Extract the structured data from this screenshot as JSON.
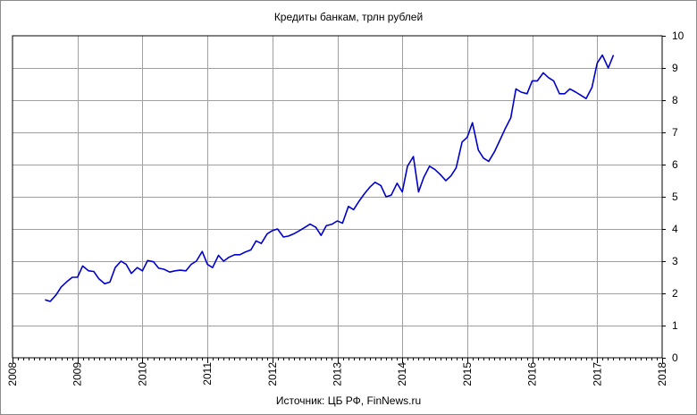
{
  "chart_data": {
    "type": "line",
    "title": "Кредиты банкам, трлн рублей",
    "source": "Источник: ЦБ РФ, FinNews.ru",
    "xlabel": "",
    "ylabel": "",
    "xlim": [
      2008,
      2018
    ],
    "ylim": [
      0,
      10
    ],
    "x_ticks": [
      "2008",
      "2009",
      "2010",
      "2011",
      "2012",
      "2013",
      "2014",
      "2015",
      "2016",
      "2017",
      "2018"
    ],
    "y_ticks": [
      "0",
      "1",
      "2",
      "3",
      "4",
      "5",
      "6",
      "7",
      "8",
      "9",
      "10"
    ],
    "y_axis_side": "right",
    "grid": true,
    "line_color": "#0000cc",
    "series": [
      {
        "x": [
          2008.5,
          2008.58,
          2008.67,
          2008.75,
          2008.83,
          2008.92,
          2009.0,
          2009.08,
          2009.17,
          2009.25,
          2009.33,
          2009.42,
          2009.5,
          2009.58,
          2009.67,
          2009.75,
          2009.83,
          2009.92,
          2010.0,
          2010.08,
          2010.17,
          2010.25,
          2010.33,
          2010.42,
          2010.5,
          2010.58,
          2010.67,
          2010.75,
          2010.83,
          2010.92,
          2011.0,
          2011.08,
          2011.17,
          2011.25,
          2011.33,
          2011.42,
          2011.5,
          2011.58,
          2011.67,
          2011.75,
          2011.83,
          2011.92,
          2012.0,
          2012.08,
          2012.17,
          2012.25,
          2012.33,
          2012.42,
          2012.5,
          2012.58,
          2012.67,
          2012.75,
          2012.83,
          2012.92,
          2013.0,
          2013.08,
          2013.17,
          2013.25,
          2013.33,
          2013.42,
          2013.5,
          2013.58,
          2013.67,
          2013.75,
          2013.83,
          2013.92,
          2014.0,
          2014.08,
          2014.17,
          2014.25,
          2014.33,
          2014.42,
          2014.5,
          2014.58,
          2014.67,
          2014.75,
          2014.83,
          2014.92,
          2015.0,
          2015.08,
          2015.17,
          2015.25,
          2015.33,
          2015.42,
          2015.5,
          2015.58,
          2015.67,
          2015.75,
          2015.83,
          2015.92,
          2016.0,
          2016.08,
          2016.17,
          2016.25,
          2016.33,
          2016.42,
          2016.5,
          2016.58,
          2016.67,
          2016.75,
          2016.83,
          2016.92,
          2017.0,
          2017.08,
          2017.17,
          2017.25
        ],
        "values": [
          1.8,
          1.75,
          1.95,
          2.2,
          2.35,
          2.5,
          2.5,
          2.85,
          2.7,
          2.68,
          2.45,
          2.3,
          2.35,
          2.8,
          3.0,
          2.9,
          2.62,
          2.8,
          2.7,
          3.02,
          2.98,
          2.78,
          2.75,
          2.66,
          2.7,
          2.72,
          2.7,
          2.9,
          3.0,
          3.3,
          2.9,
          2.8,
          3.18,
          3.0,
          3.12,
          3.2,
          3.2,
          3.28,
          3.35,
          3.63,
          3.55,
          3.85,
          3.95,
          4.0,
          3.75,
          3.78,
          3.85,
          3.95,
          4.05,
          4.15,
          4.05,
          3.8,
          4.1,
          4.15,
          4.25,
          4.18,
          4.7,
          4.6,
          4.85,
          5.1,
          5.3,
          5.45,
          5.35,
          5.0,
          5.05,
          5.42,
          5.15,
          5.95,
          6.25,
          5.15,
          5.6,
          5.95,
          5.85,
          5.7,
          5.5,
          5.65,
          5.9,
          6.7,
          6.85,
          7.3,
          6.45,
          6.2,
          6.1,
          6.4,
          6.75,
          7.1,
          7.45,
          8.35,
          8.25,
          8.2,
          8.6,
          8.6,
          8.85,
          8.7,
          8.6,
          8.2,
          8.2,
          8.35,
          8.25,
          8.15,
          8.05,
          8.4,
          9.15,
          9.4,
          9.0,
          9.4
        ]
      }
    ]
  }
}
